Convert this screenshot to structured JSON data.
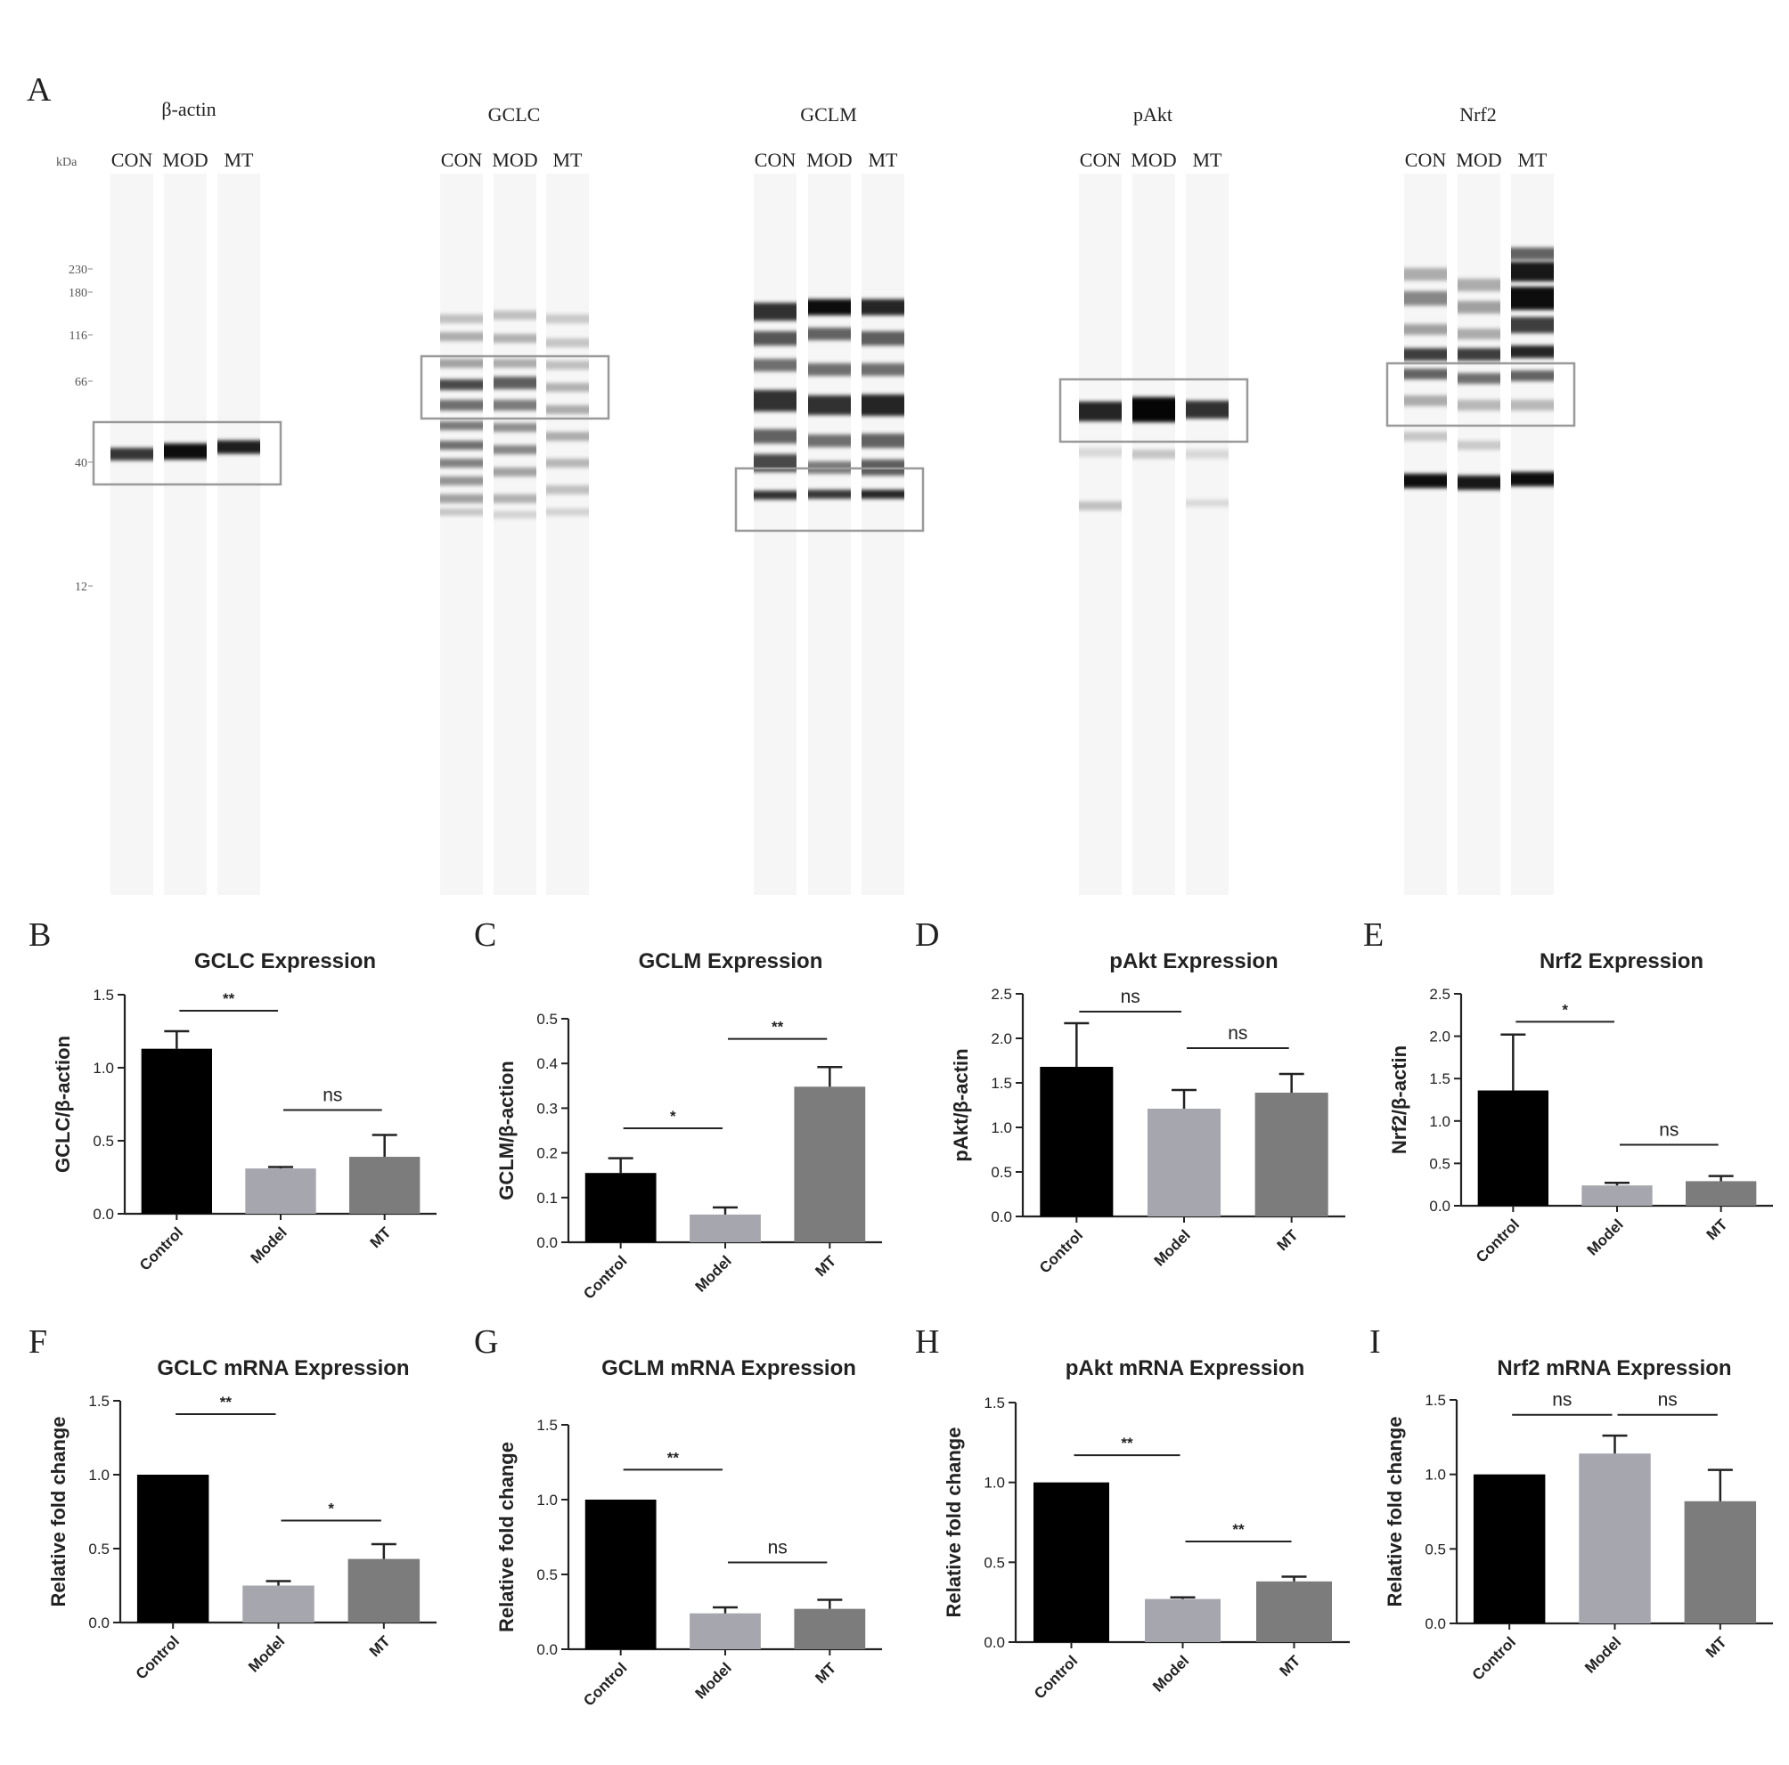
{
  "panel_a": {
    "letter": "A",
    "mw_unit": "kDa",
    "mw_markers": [
      "230",
      "180",
      "116",
      "66",
      "40",
      "12"
    ],
    "lane_labels": [
      "CON",
      "MOD",
      "MT"
    ],
    "blots": [
      {
        "title": "β-actin"
      },
      {
        "title": "GCLC"
      },
      {
        "title": "GCLM"
      },
      {
        "title": "pAkt"
      },
      {
        "title": "Nrf2"
      }
    ]
  },
  "chart_data": [
    {
      "panel": "B",
      "type": "bar",
      "title": "GCLC Expression",
      "xlabel": "",
      "ylabel": "GCLC/β-action",
      "categories": [
        "Control",
        "Model",
        "MT"
      ],
      "values": [
        1.13,
        0.31,
        0.39
      ],
      "errors": [
        0.12,
        0.01,
        0.15
      ],
      "ylim": [
        0,
        1.5
      ],
      "yticks": [
        "0.0",
        "0.5",
        "1.0",
        "1.5"
      ],
      "colors": [
        "#000000",
        "#a6a6ae",
        "#7c7c7c"
      ],
      "significance": [
        {
          "from": 0,
          "to": 1,
          "label": "**",
          "level": 1.39
        },
        {
          "from": 1,
          "to": 2,
          "label": "ns",
          "level": 0.71
        }
      ]
    },
    {
      "panel": "C",
      "type": "bar",
      "title": "GCLM Expression",
      "xlabel": "",
      "ylabel": "GCLM/β-action",
      "categories": [
        "Control",
        "Model",
        "MT"
      ],
      "values": [
        0.155,
        0.062,
        0.348
      ],
      "errors": [
        0.033,
        0.016,
        0.044
      ],
      "ylim": [
        0,
        0.5
      ],
      "yticks": [
        "0.0",
        "0.1",
        "0.2",
        "0.3",
        "0.4",
        "0.5"
      ],
      "colors": [
        "#000000",
        "#a6a6ae",
        "#7c7c7c"
      ],
      "significance": [
        {
          "from": 0,
          "to": 1,
          "label": "*",
          "level": 0.255
        },
        {
          "from": 1,
          "to": 2,
          "label": "**",
          "level": 0.455
        }
      ]
    },
    {
      "panel": "D",
      "type": "bar",
      "title": "pAkt Expression",
      "xlabel": "",
      "ylabel": "pAkt/β-actin",
      "categories": [
        "Control",
        "Model",
        "MT"
      ],
      "values": [
        1.68,
        1.21,
        1.39
      ],
      "errors": [
        0.49,
        0.21,
        0.21
      ],
      "ylim": [
        0,
        2.5
      ],
      "yticks": [
        "0.0",
        "0.5",
        "1.0",
        "1.5",
        "2.0",
        "2.5"
      ],
      "colors": [
        "#000000",
        "#a6a6ae",
        "#7c7c7c"
      ],
      "significance": [
        {
          "from": 0,
          "to": 1,
          "label": "ns",
          "level": 2.3
        },
        {
          "from": 1,
          "to": 2,
          "label": "ns",
          "level": 1.89
        }
      ]
    },
    {
      "panel": "E",
      "type": "bar",
      "title": "Nrf2 Expression",
      "xlabel": "",
      "ylabel": "Nrf2/β-actin",
      "categories": [
        "Control",
        "Model",
        "MT"
      ],
      "values": [
        1.36,
        0.24,
        0.29
      ],
      "errors": [
        0.66,
        0.03,
        0.06
      ],
      "ylim": [
        0,
        2.5
      ],
      "yticks": [
        "0.0",
        "0.5",
        "1.0",
        "1.5",
        "2.0",
        "2.5"
      ],
      "colors": [
        "#000000",
        "#a6a6ae",
        "#7c7c7c"
      ],
      "significance": [
        {
          "from": 0,
          "to": 1,
          "label": "*",
          "level": 2.17
        },
        {
          "from": 1,
          "to": 2,
          "label": "ns",
          "level": 0.72
        }
      ]
    },
    {
      "panel": "F",
      "type": "bar",
      "title": "GCLC mRNA Expression",
      "xlabel": "",
      "ylabel": "Relative fold change",
      "categories": [
        "Control",
        "Model",
        "MT"
      ],
      "values": [
        1.0,
        0.25,
        0.43
      ],
      "errors": [
        0,
        0.03,
        0.1
      ],
      "ylim": [
        0,
        1.5
      ],
      "yticks": [
        "0.0",
        "0.5",
        "1.0",
        "1.5"
      ],
      "colors": [
        "#000000",
        "#a6a6ae",
        "#7c7c7c"
      ],
      "significance": [
        {
          "from": 0,
          "to": 1,
          "label": "**",
          "level": 1.41
        },
        {
          "from": 1,
          "to": 2,
          "label": "*",
          "level": 0.69
        }
      ]
    },
    {
      "panel": "G",
      "type": "bar",
      "title": "GCLM mRNA Expression",
      "xlabel": "",
      "ylabel": "Relative fold change",
      "categories": [
        "Control",
        "Model",
        "MT"
      ],
      "values": [
        1.0,
        0.24,
        0.27
      ],
      "errors": [
        0,
        0.04,
        0.06
      ],
      "ylim": [
        0,
        1.5
      ],
      "yticks": [
        "0.0",
        "0.5",
        "1.0",
        "1.5"
      ],
      "colors": [
        "#000000",
        "#a6a6ae",
        "#7c7c7c"
      ],
      "significance": [
        {
          "from": 0,
          "to": 1,
          "label": "**",
          "level": 1.2
        },
        {
          "from": 1,
          "to": 2,
          "label": "ns",
          "level": 0.58
        }
      ]
    },
    {
      "panel": "H",
      "type": "bar",
      "title": "pAkt mRNA Expression",
      "xlabel": "",
      "ylabel": "Relative fold change",
      "categories": [
        "Control",
        "Model",
        "MT"
      ],
      "values": [
        1.0,
        0.27,
        0.38
      ],
      "errors": [
        0,
        0.01,
        0.03
      ],
      "ylim": [
        0,
        1.5
      ],
      "yticks": [
        "0.0",
        "0.5",
        "1.0",
        "1.5"
      ],
      "colors": [
        "#000000",
        "#a6a6ae",
        "#7c7c7c"
      ],
      "significance": [
        {
          "from": 0,
          "to": 1,
          "label": "**",
          "level": 1.17
        },
        {
          "from": 1,
          "to": 2,
          "label": "**",
          "level": 0.63
        }
      ]
    },
    {
      "panel": "I",
      "type": "bar",
      "title": "Nrf2 mRNA Expression",
      "xlabel": "",
      "ylabel": "Relative fold change",
      "categories": [
        "Control",
        "Model",
        "MT"
      ],
      "values": [
        1.0,
        1.14,
        0.82
      ],
      "errors": [
        0,
        0.12,
        0.21
      ],
      "ylim": [
        0,
        1.5
      ],
      "yticks": [
        "0.0",
        "0.5",
        "1.0",
        "1.5"
      ],
      "colors": [
        "#000000",
        "#a6a6ae",
        "#7c7c7c"
      ],
      "significance": [
        {
          "from": 0,
          "to": 1,
          "label": "ns",
          "level": 1.4
        },
        {
          "from": 1,
          "to": 2,
          "label": "ns",
          "level": 1.4
        }
      ]
    }
  ]
}
